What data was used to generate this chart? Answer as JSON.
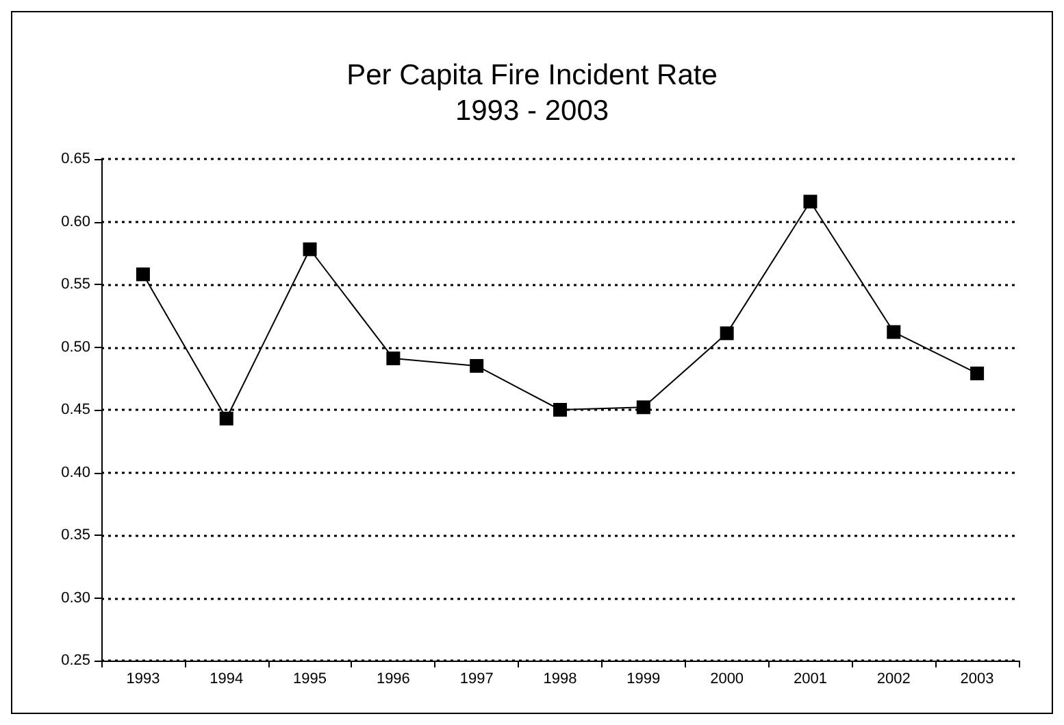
{
  "chart_data": {
    "type": "line",
    "title": "Per Capita Fire Incident Rate\n1993 - 2003",
    "categories": [
      "1993",
      "1994",
      "1995",
      "1996",
      "1997",
      "1998",
      "1999",
      "2000",
      "2001",
      "2002",
      "2003"
    ],
    "series": [
      {
        "color": "#000000",
        "values": [
          0.558,
          0.443,
          0.578,
          0.491,
          0.485,
          0.45,
          0.452,
          0.511,
          0.616,
          0.512,
          0.479
        ]
      }
    ],
    "ylim": [
      0.25,
      0.65
    ],
    "yticks": [
      0.25,
      {
        "value": 0.3,
        "label": "0.30"
      },
      0.35,
      {
        "value": 0.4,
        "label": "0.40"
      },
      0.45,
      {
        "value": 0.5,
        "label": "0.50"
      },
      0.55,
      {
        "value": 0.6,
        "label": "0.60"
      },
      0.65
    ],
    "grid": "y",
    "marker": "square",
    "line_style": "solid"
  }
}
